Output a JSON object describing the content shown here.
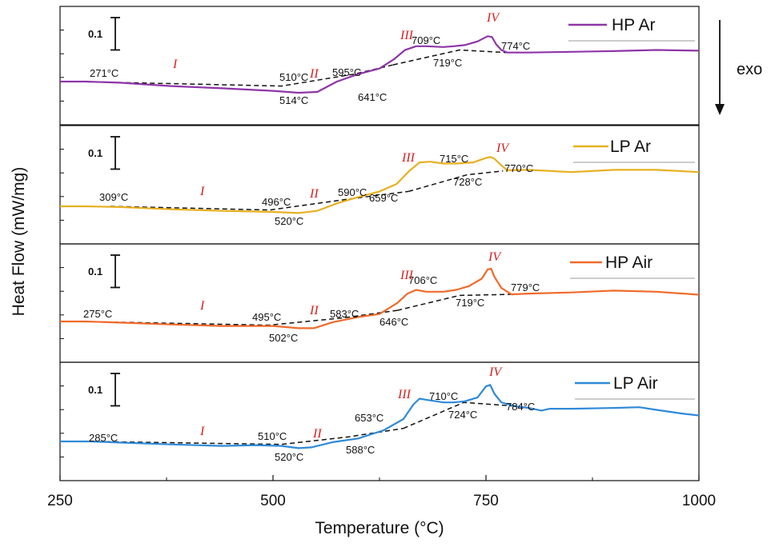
{
  "chart_data": {
    "type": "line",
    "xlabel": "Temperature (°C)",
    "ylabel": "Heat Flow (mW/mg)",
    "xlim": [
      250,
      1000
    ],
    "x_ticks": [
      "250",
      "500",
      "750",
      "1000"
    ],
    "exo_label": "exo",
    "scale_bar_label": "0.1",
    "scale_bar_value": 0.1,
    "grid": false,
    "legend_position": "top-right of each panel",
    "panels": [
      {
        "name": "HP Ar",
        "color": "#8e35a8",
        "x": [
          250,
          280,
          320,
          380,
          440,
          500,
          530,
          552,
          575,
          600,
          625,
          642,
          655,
          668,
          680,
          700,
          712,
          725,
          740,
          752,
          757,
          762,
          768,
          775,
          800,
          850,
          900,
          950,
          1000
        ],
        "y": [
          0.0,
          0.0,
          -0.003,
          -0.012,
          -0.018,
          -0.025,
          -0.03,
          -0.028,
          0.0,
          0.02,
          0.035,
          0.06,
          0.085,
          0.095,
          0.095,
          0.093,
          0.095,
          0.098,
          0.108,
          0.122,
          0.12,
          0.1,
          0.085,
          0.078,
          0.078,
          0.08,
          0.082,
          0.085,
          0.083
        ],
        "baselines": [
          {
            "x": [
              271,
              510,
              595,
              641
            ],
            "y": [
              0.0,
              -0.012,
              0.02,
              0.045
            ]
          },
          {
            "x": [
              641,
              719,
              774
            ],
            "y": [
              0.045,
              0.085,
              0.078
            ]
          }
        ],
        "temp_labels": [
          "271°C",
          "510°C",
          "514°C",
          "595°C",
          "641°C",
          "709°C",
          "719°C",
          "774°C"
        ],
        "region_labels": [
          "I",
          "II",
          "III",
          "IV"
        ]
      },
      {
        "name": "LP Ar",
        "color": "#e8b020",
        "x": [
          250,
          280,
          320,
          380,
          440,
          500,
          530,
          552,
          575,
          600,
          625,
          645,
          660,
          672,
          685,
          700,
          715,
          735,
          750,
          755,
          760,
          768,
          775,
          800,
          850,
          900,
          950,
          1000
        ],
        "y": [
          0.0,
          0.0,
          -0.002,
          -0.008,
          -0.012,
          -0.015,
          -0.018,
          -0.012,
          0.008,
          0.025,
          0.04,
          0.06,
          0.095,
          0.118,
          0.12,
          0.115,
          0.115,
          0.118,
          0.13,
          0.133,
          0.128,
          0.11,
          0.097,
          0.098,
          0.092,
          0.098,
          0.098,
          0.092
        ],
        "baselines": [
          {
            "x": [
              309,
              496,
              590,
              659
            ],
            "y": [
              0.0,
              -0.01,
              0.02,
              0.04
            ]
          },
          {
            "x": [
              659,
              728,
              770
            ],
            "y": [
              0.04,
              0.085,
              0.095
            ]
          }
        ],
        "temp_labels": [
          "309°C",
          "496°C",
          "520°C",
          "590°C",
          "659°C",
          "715°C",
          "728°C",
          "770°C"
        ],
        "region_labels": [
          "I",
          "II",
          "III",
          "IV"
        ]
      },
      {
        "name": "HP Air",
        "color": "#f06a2a",
        "x": [
          250,
          280,
          320,
          380,
          440,
          500,
          530,
          548,
          570,
          600,
          625,
          646,
          658,
          668,
          680,
          700,
          715,
          730,
          745,
          752,
          756,
          760,
          768,
          780,
          800,
          850,
          900,
          950,
          1000
        ],
        "y": [
          0.0,
          0.0,
          -0.003,
          -0.008,
          -0.012,
          -0.012,
          -0.018,
          -0.018,
          -0.002,
          0.012,
          0.02,
          0.05,
          0.075,
          0.085,
          0.08,
          0.08,
          0.085,
          0.095,
          0.115,
          0.14,
          0.142,
          0.12,
          0.09,
          0.073,
          0.075,
          0.078,
          0.083,
          0.08,
          0.072
        ],
        "baselines": [
          {
            "x": [
              275,
              495,
              583,
              646
            ],
            "y": [
              0.0,
              -0.01,
              0.01,
              0.03
            ]
          },
          {
            "x": [
              646,
              719,
              779
            ],
            "y": [
              0.03,
              0.07,
              0.073
            ]
          }
        ],
        "temp_labels": [
          "275°C",
          "495°C",
          "502°C",
          "583°C",
          "646°C",
          "706°C",
          "719°C",
          "779°C"
        ],
        "region_labels": [
          "I",
          "II",
          "III",
          "IV"
        ]
      },
      {
        "name": "LP Air",
        "color": "#2f8ad8",
        "x": [
          250,
          285,
          320,
          380,
          440,
          480,
          510,
          530,
          545,
          570,
          600,
          630,
          653,
          665,
          672,
          680,
          700,
          712,
          725,
          740,
          750,
          755,
          760,
          768,
          784,
          800,
          815,
          825,
          850,
          900,
          930,
          950,
          980,
          1000
        ],
        "y": [
          0.0,
          0.0,
          -0.003,
          -0.008,
          -0.012,
          -0.01,
          -0.012,
          -0.018,
          -0.016,
          -0.002,
          0.008,
          0.03,
          0.06,
          0.1,
          0.115,
          0.112,
          0.105,
          0.105,
          0.108,
          0.118,
          0.148,
          0.152,
          0.128,
          0.105,
          0.095,
          0.09,
          0.083,
          0.088,
          0.088,
          0.09,
          0.092,
          0.085,
          0.075,
          0.07
        ],
        "baselines": [
          {
            "x": [
              285,
              510,
              588,
              653
            ],
            "y": [
              0.0,
              -0.008,
              0.012,
              0.035
            ]
          },
          {
            "x": [
              653,
              724,
              784
            ],
            "y": [
              0.035,
              0.105,
              0.095
            ]
          }
        ],
        "temp_labels": [
          "285°C",
          "510°C",
          "520°C",
          "588°C",
          "653°C",
          "710°C",
          "724°C",
          "784°C"
        ],
        "region_labels": [
          "I",
          "II",
          "III",
          "IV"
        ]
      }
    ]
  }
}
